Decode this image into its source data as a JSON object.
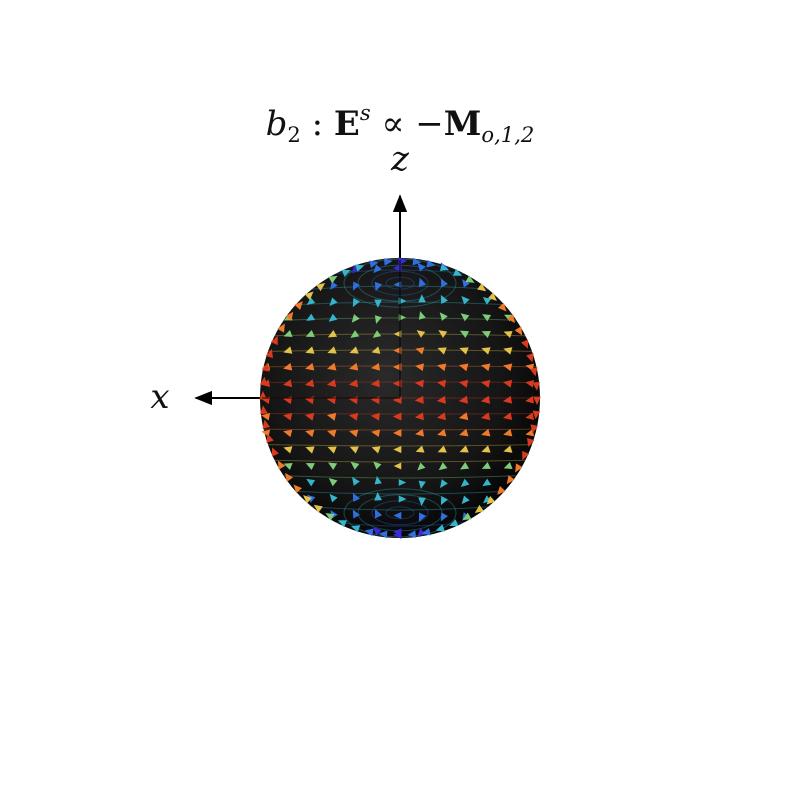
{
  "title": {
    "lhs_base": "b",
    "lhs_sub": "2",
    "colon": " : ",
    "field_base": "E",
    "field_sup": "s",
    "relation": " ∝ −",
    "mode_base": "M",
    "mode_sub": "o,1,2"
  },
  "axes": {
    "z_label": "z",
    "x_label": "x"
  },
  "colors": {
    "sphere": "#111111",
    "axis": "#000000",
    "colormap": [
      "#3b2bd6",
      "#2f6fe0",
      "#35b5c9",
      "#7ccc7a",
      "#e3c24a",
      "#f07a2c",
      "#d83a1f"
    ]
  }
}
